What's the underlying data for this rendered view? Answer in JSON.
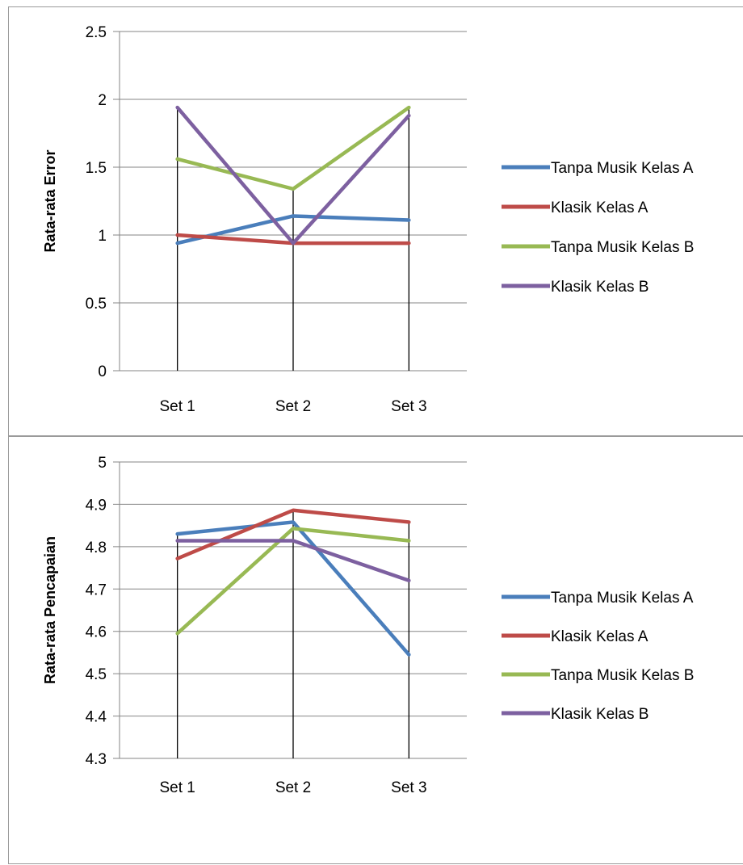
{
  "chart_data": [
    {
      "type": "line",
      "title": "",
      "xlabel": "",
      "ylabel": "Rata-rata Error",
      "categories": [
        "Set 1",
        "Set 2",
        "Set 3"
      ],
      "ylim": [
        0,
        2.5
      ],
      "yticks": [
        "0",
        "0.5",
        "1",
        "1.5",
        "2",
        "2.5"
      ],
      "ytick_values": [
        0,
        0.5,
        1,
        1.5,
        2,
        2.5
      ],
      "grid": true,
      "legend_position": "right",
      "drop_lines": true,
      "series": [
        {
          "name": "Tanpa Musik Kelas A",
          "color": "#4a7ebb",
          "values": [
            0.94,
            1.14,
            1.11
          ]
        },
        {
          "name": "Klasik Kelas A",
          "color": "#be4b48",
          "values": [
            1.0,
            0.94,
            0.94
          ]
        },
        {
          "name": "Tanpa Musik Kelas B",
          "color": "#98b954",
          "values": [
            1.56,
            1.34,
            1.94
          ]
        },
        {
          "name": "Klasik Kelas B",
          "color": "#7d60a0",
          "values": [
            1.94,
            0.94,
            1.88
          ]
        }
      ]
    },
    {
      "type": "line",
      "title": "",
      "xlabel": "",
      "ylabel": "Rata-rata Pencapaian",
      "categories": [
        "Set 1",
        "Set 2",
        "Set 3"
      ],
      "ylim": [
        4.3,
        5
      ],
      "yticks": [
        "4.3",
        "4.4",
        "4.5",
        "4.6",
        "4.7",
        "4.8",
        "4.9",
        "5"
      ],
      "ytick_values": [
        4.3,
        4.4,
        4.5,
        4.6,
        4.7,
        4.8,
        4.9,
        5.0
      ],
      "grid": true,
      "legend_position": "right",
      "drop_lines": true,
      "series": [
        {
          "name": "Tanpa Musik Kelas A",
          "color": "#4a7ebb",
          "values": [
            4.83,
            4.858,
            4.545
          ]
        },
        {
          "name": "Klasik Kelas A",
          "color": "#be4b48",
          "values": [
            4.772,
            4.886,
            4.858
          ]
        },
        {
          "name": "Tanpa Musik Kelas B",
          "color": "#98b954",
          "values": [
            4.595,
            4.843,
            4.814
          ]
        },
        {
          "name": "Klasik Kelas B",
          "color": "#7d60a0",
          "values": [
            4.814,
            4.814,
            4.72
          ]
        }
      ]
    }
  ]
}
